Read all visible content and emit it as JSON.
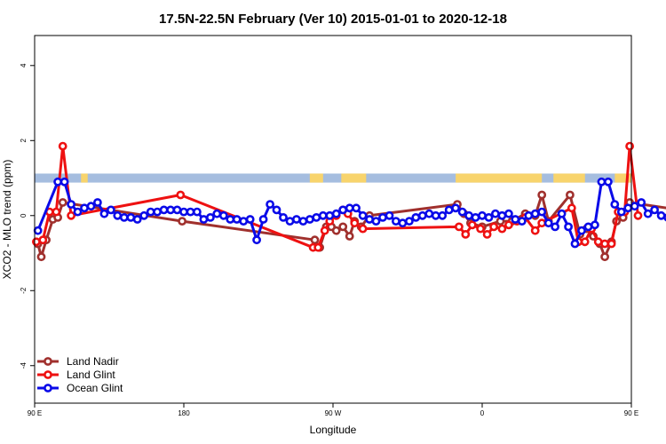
{
  "chart_data": {
    "type": "line",
    "title": "17.5N-22.5N February (Ver 10)   2015-01-01 to 2020-12-18",
    "xlabel": "Longitude",
    "ylabel": "XCO2 - MLO trend (ppm)",
    "xlim": [
      90,
      450
    ],
    "ylim": [
      -5,
      4.8
    ],
    "x_ticks": [
      {
        "value": 90,
        "label": "90 E"
      },
      {
        "value": 180,
        "label": "180"
      },
      {
        "value": 270,
        "label": "90 W"
      },
      {
        "value": 360,
        "label": "0"
      },
      {
        "value": 450,
        "label": "90 E"
      },
      {
        "value": 540,
        "label": "180"
      }
    ],
    "y_ticks": [
      -4,
      -2,
      0,
      2,
      4
    ],
    "grid": false,
    "legend_position": "bottom-left",
    "land_mask_band": {
      "y_range": [
        0.88,
        1.12
      ],
      "ocean_color": "#a5bddf",
      "land_color": "#f8d46c",
      "land_segments": [
        [
          118,
          122
        ],
        [
          256,
          264
        ],
        [
          275,
          290
        ],
        [
          344,
          396
        ],
        [
          403,
          422
        ],
        [
          440,
          460
        ]
      ]
    },
    "series": [
      {
        "name": "Land Nadir",
        "color": "#a0302d",
        "points": [
          [
            92,
            -0.75
          ],
          [
            94,
            -1.1
          ],
          [
            97,
            -0.65
          ],
          [
            101,
            -0.1
          ],
          [
            104,
            -0.05
          ],
          [
            107,
            0.35
          ],
          [
            179,
            -0.15
          ],
          [
            259,
            -0.65
          ],
          [
            262,
            -0.85
          ],
          [
            266,
            -0.3
          ],
          [
            269,
            -0.3
          ],
          [
            272,
            -0.4
          ],
          [
            276,
            -0.3
          ],
          [
            280,
            -0.55
          ],
          [
            283,
            -0.15
          ],
          [
            287,
            -0.3
          ],
          [
            292,
            0.0
          ],
          [
            345,
            0.3
          ],
          [
            349,
            0.05
          ],
          [
            353,
            -0.2
          ],
          [
            360,
            -0.3
          ],
          [
            371,
            -0.15
          ],
          [
            378,
            -0.15
          ],
          [
            386,
            0.05
          ],
          [
            392,
            0.0
          ],
          [
            396,
            0.55
          ],
          [
            400,
            -0.15
          ],
          [
            413,
            0.55
          ],
          [
            419,
            -0.5
          ],
          [
            423,
            -0.35
          ],
          [
            427,
            -0.55
          ],
          [
            431,
            -0.75
          ],
          [
            434,
            -1.1
          ],
          [
            438,
            -0.7
          ],
          [
            441,
            -0.15
          ],
          [
            445,
            -0.05
          ],
          [
            449,
            0.35
          ],
          [
            524,
            -0.15
          ]
        ]
      },
      {
        "name": "Land Glint",
        "color": "#ee1111",
        "points": [
          [
            91,
            -0.7
          ],
          [
            95,
            -0.65
          ],
          [
            99,
            0.1
          ],
          [
            103,
            0.1
          ],
          [
            107,
            1.85
          ],
          [
            112,
            0.0
          ],
          [
            178,
            0.55
          ],
          [
            258,
            -0.85
          ],
          [
            261,
            -0.85
          ],
          [
            265,
            -0.4
          ],
          [
            268,
            -0.15
          ],
          [
            272,
            0.0
          ],
          [
            276,
            0.15
          ],
          [
            279,
            0.05
          ],
          [
            283,
            -0.2
          ],
          [
            288,
            -0.35
          ],
          [
            346,
            -0.3
          ],
          [
            350,
            -0.5
          ],
          [
            354,
            -0.25
          ],
          [
            359,
            -0.35
          ],
          [
            363,
            -0.5
          ],
          [
            367,
            -0.3
          ],
          [
            372,
            -0.35
          ],
          [
            376,
            -0.25
          ],
          [
            381,
            -0.15
          ],
          [
            386,
            -0.05
          ],
          [
            392,
            -0.4
          ],
          [
            396,
            -0.2
          ],
          [
            414,
            0.2
          ],
          [
            418,
            -0.7
          ],
          [
            422,
            -0.7
          ],
          [
            426,
            -0.35
          ],
          [
            430,
            -0.7
          ],
          [
            434,
            -0.75
          ],
          [
            438,
            -0.75
          ],
          [
            442,
            0.1
          ],
          [
            446,
            0.1
          ],
          [
            449,
            1.85
          ],
          [
            454,
            0.0
          ]
        ]
      },
      {
        "name": "Ocean Glint",
        "color": "#0a0ae8",
        "points": [
          [
            92,
            -0.4
          ],
          [
            104,
            0.9
          ],
          [
            108,
            0.9
          ],
          [
            112,
            0.3
          ],
          [
            116,
            0.1
          ],
          [
            120,
            0.2
          ],
          [
            124,
            0.25
          ],
          [
            128,
            0.35
          ],
          [
            132,
            0.05
          ],
          [
            136,
            0.15
          ],
          [
            140,
            0.0
          ],
          [
            144,
            -0.05
          ],
          [
            148,
            -0.05
          ],
          [
            152,
            -0.1
          ],
          [
            156,
            0.0
          ],
          [
            160,
            0.1
          ],
          [
            164,
            0.1
          ],
          [
            168,
            0.15
          ],
          [
            172,
            0.15
          ],
          [
            176,
            0.15
          ],
          [
            180,
            0.1
          ],
          [
            184,
            0.1
          ],
          [
            188,
            0.1
          ],
          [
            192,
            -0.1
          ],
          [
            196,
            -0.05
          ],
          [
            200,
            0.05
          ],
          [
            204,
            0.0
          ],
          [
            208,
            -0.1
          ],
          [
            212,
            -0.1
          ],
          [
            216,
            -0.15
          ],
          [
            220,
            -0.1
          ],
          [
            224,
            -0.65
          ],
          [
            228,
            -0.1
          ],
          [
            232,
            0.3
          ],
          [
            236,
            0.15
          ],
          [
            240,
            -0.05
          ],
          [
            244,
            -0.15
          ],
          [
            248,
            -0.1
          ],
          [
            252,
            -0.15
          ],
          [
            256,
            -0.1
          ],
          [
            260,
            -0.05
          ],
          [
            264,
            0.0
          ],
          [
            268,
            0.0
          ],
          [
            272,
            0.05
          ],
          [
            276,
            0.15
          ],
          [
            280,
            0.2
          ],
          [
            284,
            0.2
          ],
          [
            288,
            0.0
          ],
          [
            292,
            -0.1
          ],
          [
            296,
            -0.15
          ],
          [
            300,
            -0.05
          ],
          [
            304,
            0.0
          ],
          [
            308,
            -0.15
          ],
          [
            312,
            -0.2
          ],
          [
            316,
            -0.15
          ],
          [
            320,
            -0.05
          ],
          [
            324,
            0.0
          ],
          [
            328,
            0.05
          ],
          [
            332,
            0.0
          ],
          [
            336,
            0.0
          ],
          [
            340,
            0.15
          ],
          [
            344,
            0.2
          ],
          [
            348,
            0.1
          ],
          [
            352,
            0.0
          ],
          [
            356,
            -0.05
          ],
          [
            360,
            0.0
          ],
          [
            364,
            -0.05
          ],
          [
            368,
            0.05
          ],
          [
            372,
            0.0
          ],
          [
            376,
            0.05
          ],
          [
            380,
            -0.1
          ],
          [
            384,
            -0.15
          ],
          [
            388,
            0.0
          ],
          [
            392,
            0.05
          ],
          [
            396,
            0.1
          ],
          [
            400,
            -0.2
          ],
          [
            404,
            -0.3
          ],
          [
            408,
            0.05
          ],
          [
            412,
            -0.3
          ],
          [
            416,
            -0.75
          ],
          [
            420,
            -0.4
          ],
          [
            424,
            -0.3
          ],
          [
            428,
            -0.25
          ],
          [
            432,
            0.9
          ],
          [
            436,
            0.9
          ],
          [
            440,
            0.3
          ],
          [
            444,
            0.1
          ],
          [
            448,
            0.2
          ],
          [
            452,
            0.25
          ],
          [
            456,
            0.35
          ],
          [
            460,
            0.05
          ],
          [
            464,
            0.15
          ],
          [
            468,
            0.0
          ],
          [
            472,
            -0.05
          ],
          [
            476,
            -0.1
          ],
          [
            480,
            0.0
          ],
          [
            484,
            -0.05
          ],
          [
            488,
            0.1
          ]
        ]
      }
    ]
  }
}
